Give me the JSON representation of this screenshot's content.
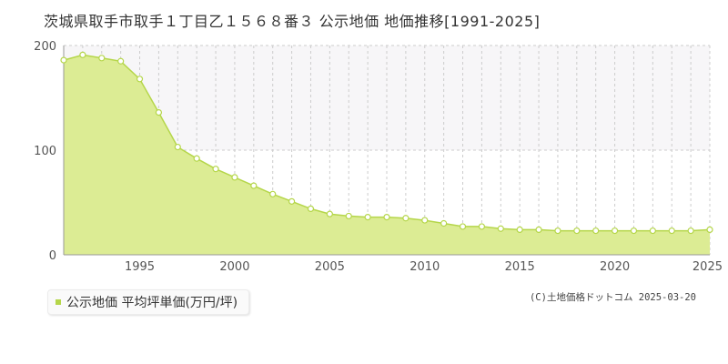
{
  "header": {
    "title": "茨城県取手市取手１丁目乙１５６８番３ 公示地価 地価推移[1991-2025]"
  },
  "legend": {
    "label": "公示地価 平均坪単価(万円/坪)"
  },
  "footer": {
    "credit": "(C)土地価格ドットコム 2025-03-20"
  },
  "colors": {
    "fill": "#dcec94",
    "line": "#b5d64a",
    "marker_fill": "#ffffff",
    "band": "#f7f6f8",
    "grid": "#cccccc"
  },
  "chart_data": {
    "type": "area",
    "title": "茨城県取手市取手１丁目乙１５６８番３ 公示地価 地価推移[1991-2025]",
    "xlabel": "",
    "ylabel": "",
    "xlim": [
      1991,
      2025
    ],
    "ylim": [
      0,
      200
    ],
    "x_ticks": [
      1995,
      2000,
      2005,
      2010,
      2015,
      2020,
      2025
    ],
    "y_ticks": [
      0,
      100,
      200
    ],
    "grid": true,
    "legend_position": "bottom-left",
    "series": [
      {
        "name": "公示地価 平均坪単価(万円/坪)",
        "x": [
          1991,
          1992,
          1993,
          1994,
          1995,
          1996,
          1997,
          1998,
          1999,
          2000,
          2001,
          2002,
          2003,
          2004,
          2005,
          2006,
          2007,
          2008,
          2009,
          2010,
          2011,
          2012,
          2013,
          2014,
          2015,
          2016,
          2017,
          2018,
          2019,
          2020,
          2021,
          2022,
          2023,
          2024,
          2025
        ],
        "values": [
          186,
          191,
          188,
          185,
          168,
          136,
          103,
          92,
          82,
          74,
          66,
          58,
          51,
          44,
          39,
          37,
          36,
          36,
          35,
          33,
          30,
          27,
          27,
          25,
          24,
          24,
          23,
          23,
          23,
          23,
          23,
          23,
          23,
          23,
          24
        ]
      }
    ]
  }
}
